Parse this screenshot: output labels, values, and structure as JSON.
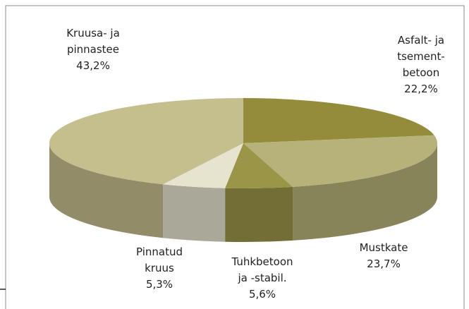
{
  "chart_data": {
    "type": "pie3d",
    "categories": [
      "Asfalt- ja\ntsement-\nbetoon",
      "Mustkate",
      "Tuhkbetoon\nja -stabil.",
      "Pinnatud\nkruus",
      "Kruusa- ja\npinnastee"
    ],
    "values": [
      22.2,
      23.7,
      5.6,
      5.3,
      43.2
    ],
    "value_labels": [
      "22,2%",
      "23,7%",
      "5,6%",
      "5,3%",
      "43,2%"
    ],
    "colors": [
      "#958c3b",
      "#b6b27a",
      "#9b9547",
      "#e6e4cf",
      "#c5bf8d"
    ]
  }
}
